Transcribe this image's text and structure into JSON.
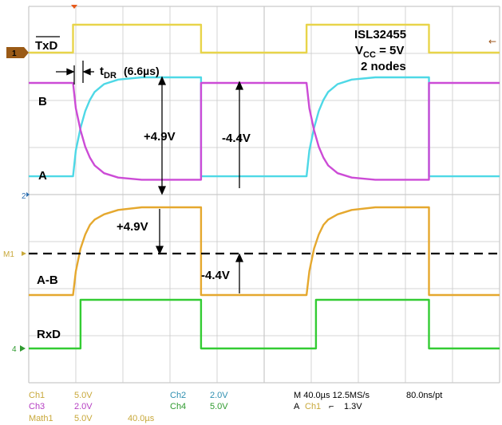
{
  "chart_data": {
    "type": "line",
    "title": "ISL32455",
    "subtitle_lines": [
      "V",
      "CC",
      " = 5V",
      "2 nodes"
    ],
    "xlabel": "",
    "ylabel": "",
    "time_per_div_us": 40.0,
    "grid": true,
    "grid_divisions": {
      "x": 10,
      "y": 8
    },
    "series": [
      {
        "name": "TxD",
        "display": "TxD",
        "channel": "Ch1",
        "color": "#e8d44a",
        "points": [
          [
            0,
            0
          ],
          [
            47,
            0
          ],
          [
            47,
            1
          ],
          [
            183,
            1
          ],
          [
            183,
            0
          ],
          [
            295,
            0
          ],
          [
            295,
            1
          ],
          [
            425,
            1
          ],
          [
            425,
            0
          ],
          [
            500,
            0
          ]
        ]
      },
      {
        "name": "A",
        "channel": "Ch2",
        "color": "#4ed8e6",
        "points": [
          [
            0,
            0.12
          ],
          [
            47,
            0.12
          ],
          [
            50,
            0.35
          ],
          [
            55,
            0.55
          ],
          [
            60,
            0.7
          ],
          [
            65,
            0.8
          ],
          [
            70,
            0.87
          ],
          [
            80,
            0.94
          ],
          [
            95,
            0.98
          ],
          [
            120,
            1
          ],
          [
            183,
            1
          ],
          [
            183,
            0.12
          ],
          [
            295,
            0.12
          ],
          [
            298,
            0.35
          ],
          [
            303,
            0.55
          ],
          [
            308,
            0.7
          ],
          [
            313,
            0.8
          ],
          [
            318,
            0.87
          ],
          [
            328,
            0.94
          ],
          [
            343,
            0.98
          ],
          [
            368,
            1
          ],
          [
            425,
            1
          ],
          [
            425,
            0.12
          ],
          [
            500,
            0.12
          ]
        ]
      },
      {
        "name": "B",
        "channel": "Ch3",
        "color": "#cc4bd6",
        "points": [
          [
            0,
            1
          ],
          [
            47,
            1
          ],
          [
            50,
            0.77
          ],
          [
            55,
            0.57
          ],
          [
            60,
            0.42
          ],
          [
            65,
            0.32
          ],
          [
            70,
            0.25
          ],
          [
            80,
            0.18
          ],
          [
            95,
            0.14
          ],
          [
            120,
            0.12
          ],
          [
            183,
            0.12
          ],
          [
            183,
            1
          ],
          [
            295,
            1
          ],
          [
            298,
            0.77
          ],
          [
            303,
            0.57
          ],
          [
            308,
            0.42
          ],
          [
            313,
            0.32
          ],
          [
            318,
            0.25
          ],
          [
            328,
            0.18
          ],
          [
            343,
            0.14
          ],
          [
            368,
            0.12
          ],
          [
            425,
            0.12
          ],
          [
            425,
            1
          ],
          [
            500,
            1
          ]
        ]
      },
      {
        "name": "A-B",
        "channel": "Math1",
        "color": "#e5a82e",
        "points": [
          [
            0,
            0
          ],
          [
            47,
            0
          ],
          [
            50,
            0.27
          ],
          [
            55,
            0.53
          ],
          [
            60,
            0.69
          ],
          [
            65,
            0.8
          ],
          [
            70,
            0.86
          ],
          [
            80,
            0.92
          ],
          [
            95,
            0.97
          ],
          [
            120,
            1
          ],
          [
            183,
            1
          ],
          [
            183,
            0
          ],
          [
            295,
            0
          ],
          [
            298,
            0.27
          ],
          [
            303,
            0.53
          ],
          [
            308,
            0.69
          ],
          [
            313,
            0.8
          ],
          [
            318,
            0.86
          ],
          [
            328,
            0.92
          ],
          [
            343,
            0.97
          ],
          [
            368,
            1
          ],
          [
            425,
            1
          ],
          [
            425,
            0
          ],
          [
            500,
            0
          ]
        ]
      },
      {
        "name": "RxD",
        "channel": "Ch4",
        "color": "#33cc33",
        "points": [
          [
            0,
            0
          ],
          [
            55,
            0
          ],
          [
            55,
            1
          ],
          [
            183,
            1
          ],
          [
            183,
            0
          ],
          [
            305,
            0
          ],
          [
            305,
            1
          ],
          [
            425,
            1
          ],
          [
            425,
            0
          ],
          [
            500,
            0
          ]
        ]
      }
    ],
    "annotations": {
      "tdr_label": "t",
      "tdr_sub": "DR",
      "tdr_value": "(6.6µs)",
      "ab_pos": "+4.9V",
      "ab_neg": "-4.4V",
      "math_pos": "+4.9V",
      "math_neg": "-4.4V"
    },
    "markers": {
      "ch1": "1",
      "ch2": "2",
      "m1": "M1",
      "ch4": "4"
    },
    "readouts": [
      {
        "label": "Ch1",
        "value": "5.0V",
        "color": "#c8a83a"
      },
      {
        "label": "Ch2",
        "value": "2.0V",
        "color": "#2e8fb0"
      },
      {
        "label": "Ch3",
        "value": "2.0V",
        "color": "#b53fc2"
      },
      {
        "label": "Ch4",
        "value": "5.0V",
        "color": "#2f9a2f"
      },
      {
        "label": "Math1",
        "value": "5.0V",
        "color": "#c8a83a"
      },
      {
        "label": "",
        "value": "40.0µs",
        "color": "#c8a83a"
      }
    ],
    "timebase": {
      "main": "M 40.0µs 12.5MS/s",
      "res": "80.0ns/pt",
      "trigger_a": "A",
      "trigger_ch": "Ch1",
      "trigger_slope": "⌐",
      "trigger_level": "1.3V"
    }
  },
  "colors": {
    "grid": "#c9c9c9",
    "dash": "#000000",
    "tdr_value": "#e8202a"
  }
}
